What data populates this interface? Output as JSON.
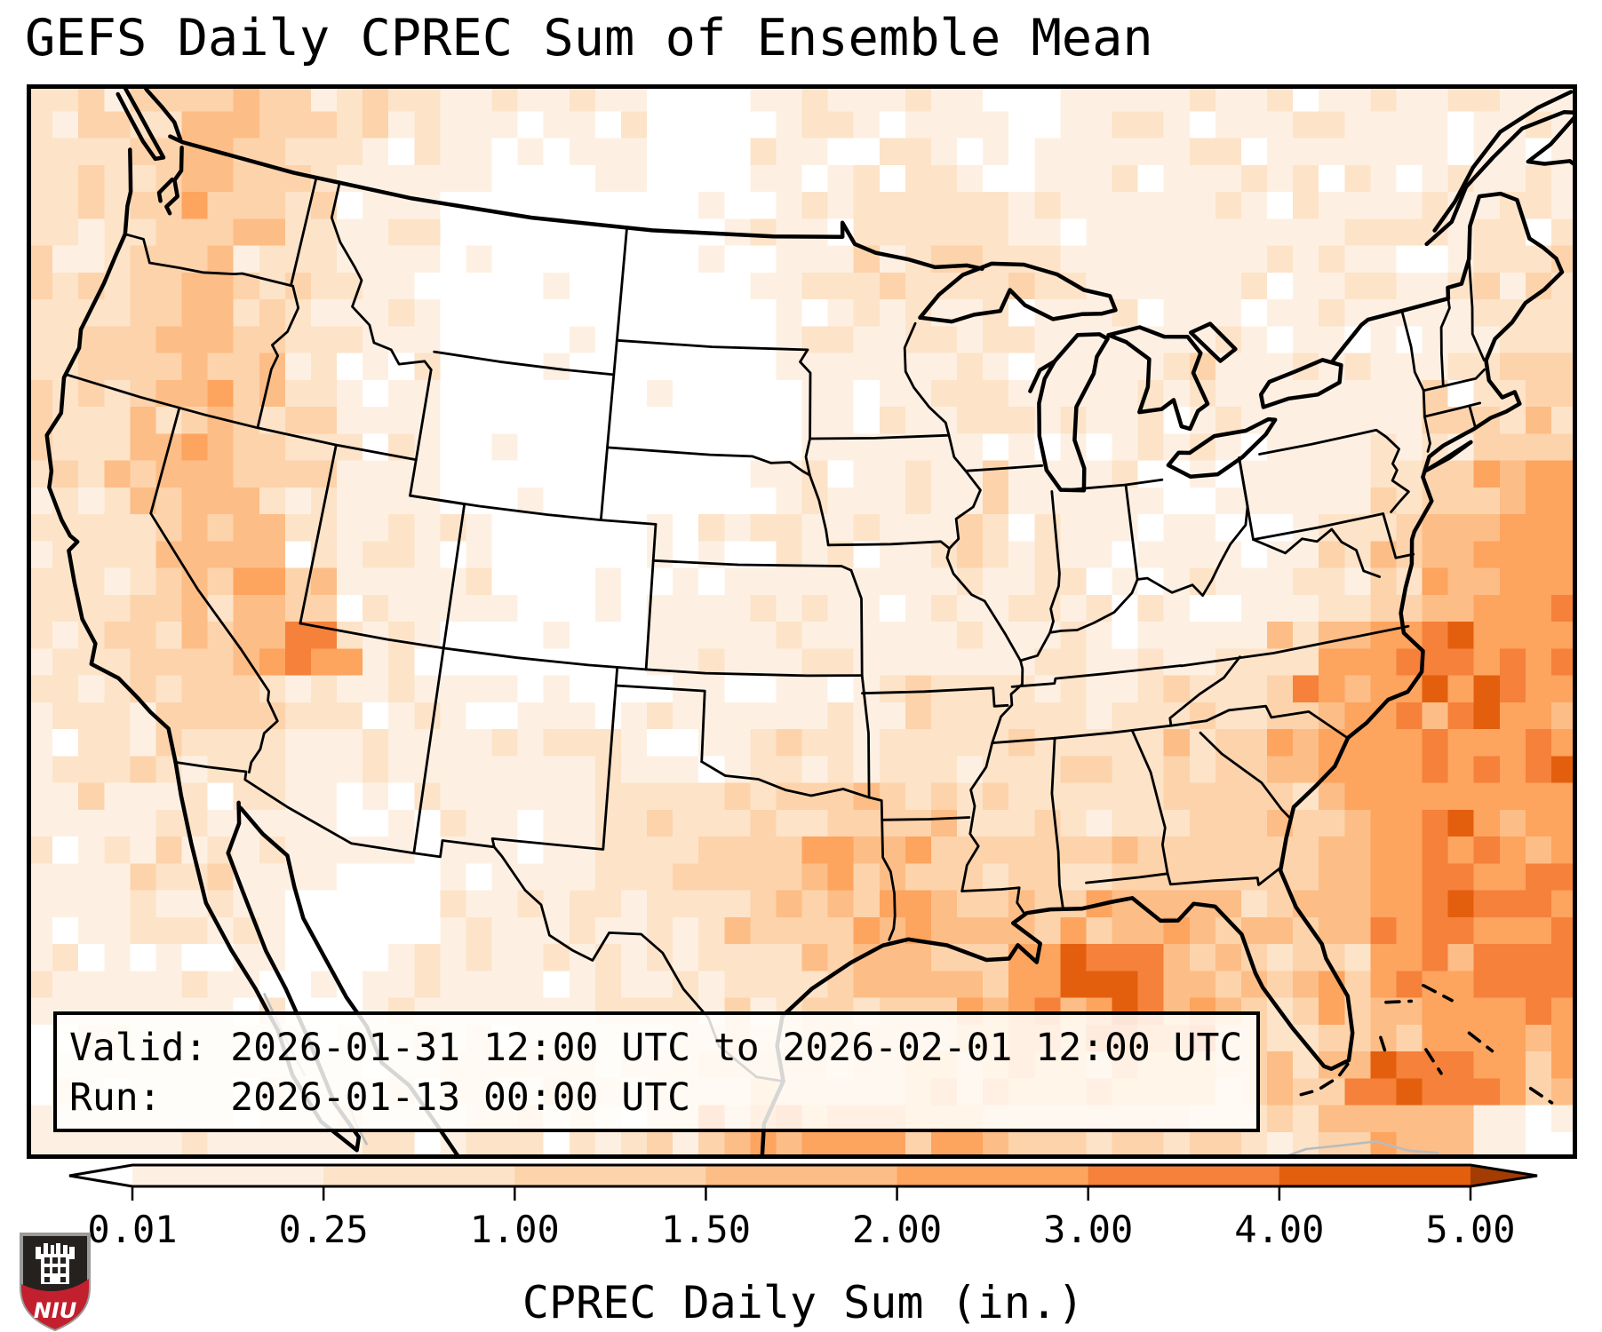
{
  "title": "GEFS Daily CPREC Sum of Ensemble Mean",
  "info_box": {
    "line1": "Valid: 2026-01-31 12:00 UTC to 2026-02-01 12:00 UTC",
    "line2": "Run:   2026-01-13 00:00 UTC"
  },
  "colorbar": {
    "label": "CPREC Daily Sum (in.)",
    "tick_labels": [
      "0.01",
      "0.25",
      "1.00",
      "1.50",
      "2.00",
      "3.00",
      "4.00",
      "5.00"
    ],
    "under_color": "#ffffff",
    "over_color": "#a23c03",
    "bin_colors": [
      "#fdf0e3",
      "#fde3c8",
      "#fdd3ab",
      "#fdbd86",
      "#fda45f",
      "#f5813a",
      "#e35f0e"
    ]
  },
  "map": {
    "level_colors": [
      "#ffffff",
      "#fdf0e3",
      "#fde3c8",
      "#fdd3ab",
      "#fdbd86",
      "#fda45f",
      "#f5813a",
      "#e35f0e",
      "#b24402"
    ],
    "coast_color": "#000000",
    "state_color": "#000000",
    "foreign_color": "#b8bcbd",
    "field_rows": [
      "233432211111001111101111111111",
      "233432111101001112111111111111",
      "223532110000001122211111111221",
      "223422110000001122221111111122",
      "223432110000000112211111111122",
      "233442110000000111211121111223",
      "223432110000000111111111111233",
      "224432110000001111211101112345",
      "223442111000011111211110123455",
      "223443111000111111111111123455",
      "223345110000111111111112245655",
      "223332111011111112221222355565",
      "122221111111112222222233455556",
      "122111011112222333222233345655",
      "112211001112233443333333345565",
      "112110001111223354344443345665",
      "111110011111222343457643335566",
      "111110111111222333455643234555",
      "111111112222233334444443346654",
      "111111112211235554333332234410"
    ]
  },
  "logo": {
    "text": "NIU",
    "shield_color": "#25211e",
    "band_color": "#c3202f",
    "letter_color": "#ffffff",
    "outline_color": "#9a9a9a",
    "castle_color": "#ffffff"
  }
}
